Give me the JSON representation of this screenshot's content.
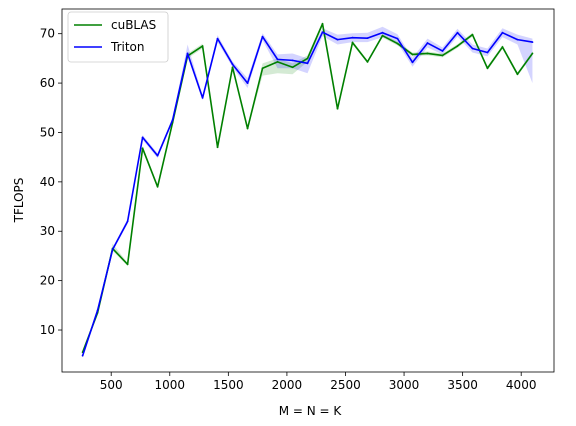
{
  "chart_data": {
    "type": "line",
    "xlabel": "M = N = K",
    "ylabel": "TFLOPS",
    "xlim": [
      80,
      4280
    ],
    "ylim": [
      1.5,
      75
    ],
    "xticks": [
      500,
      1000,
      1500,
      2000,
      2500,
      3000,
      3500,
      4000
    ],
    "yticks": [
      10,
      20,
      30,
      40,
      50,
      60,
      70
    ],
    "grid": false,
    "legend_position": "top-left",
    "x": [
      256,
      384,
      512,
      640,
      768,
      896,
      1024,
      1152,
      1280,
      1408,
      1536,
      1664,
      1792,
      1920,
      2048,
      2176,
      2304,
      2432,
      2560,
      2688,
      2816,
      2944,
      3072,
      3200,
      3328,
      3456,
      3584,
      3712,
      3840,
      3968,
      4096
    ],
    "series": [
      {
        "name": "cuBLAS",
        "color": "#008000",
        "values": [
          5.5,
          13.5,
          26.5,
          23.3,
          46.8,
          39.0,
          52.0,
          65.5,
          67.5,
          47.0,
          63.2,
          50.8,
          63.0,
          64.3,
          63.2,
          65.0,
          72.0,
          54.8,
          68.2,
          64.3,
          69.6,
          68.0,
          65.8,
          66.0,
          65.6,
          67.5,
          69.8,
          63.0,
          67.3,
          61.8,
          66.0
        ],
        "lower": [
          5.3,
          13.3,
          26.0,
          23.0,
          46.3,
          38.7,
          51.7,
          65.0,
          67.0,
          46.7,
          62.8,
          50.5,
          61.5,
          62.0,
          61.8,
          64.3,
          71.5,
          54.5,
          67.8,
          64.0,
          69.2,
          67.6,
          65.4,
          65.6,
          65.2,
          67.1,
          69.4,
          62.6,
          66.9,
          61.4,
          65.6
        ],
        "upper": [
          5.7,
          13.7,
          27.5,
          23.6,
          47.3,
          39.3,
          52.3,
          66.0,
          68.0,
          47.3,
          63.6,
          51.1,
          64.0,
          65.0,
          64.0,
          65.6,
          72.5,
          55.1,
          68.6,
          64.6,
          70.0,
          68.4,
          66.2,
          66.4,
          66.0,
          67.9,
          70.2,
          63.4,
          67.7,
          62.2,
          66.4
        ]
      },
      {
        "name": "Triton",
        "color": "#0000ff",
        "values": [
          4.8,
          14.0,
          26.3,
          32.0,
          49.0,
          45.3,
          52.5,
          66.0,
          57.0,
          69.0,
          63.8,
          60.0,
          69.4,
          64.8,
          64.6,
          64.0,
          70.3,
          68.8,
          69.2,
          69.1,
          70.2,
          69.0,
          64.2,
          68.1,
          66.5,
          70.2,
          67.0,
          66.2,
          70.2,
          68.8,
          68.3
        ],
        "lower": [
          4.5,
          13.6,
          25.9,
          31.5,
          48.5,
          44.8,
          52.0,
          65.3,
          56.5,
          68.3,
          63.2,
          59.0,
          68.7,
          63.0,
          63.0,
          62.0,
          69.5,
          67.8,
          68.3,
          68.3,
          69.3,
          68.1,
          63.3,
          67.2,
          65.8,
          69.4,
          66.2,
          65.4,
          69.3,
          67.8,
          60.0
        ],
        "upper": [
          5.1,
          14.4,
          26.7,
          32.5,
          49.5,
          45.8,
          53.0,
          67.8,
          57.5,
          69.7,
          64.4,
          61.0,
          70.1,
          65.8,
          66.0,
          65.0,
          71.1,
          69.8,
          70.1,
          70.2,
          71.4,
          69.9,
          65.1,
          69.0,
          67.2,
          71.0,
          67.8,
          67.0,
          71.1,
          69.8,
          69.0
        ]
      }
    ]
  }
}
